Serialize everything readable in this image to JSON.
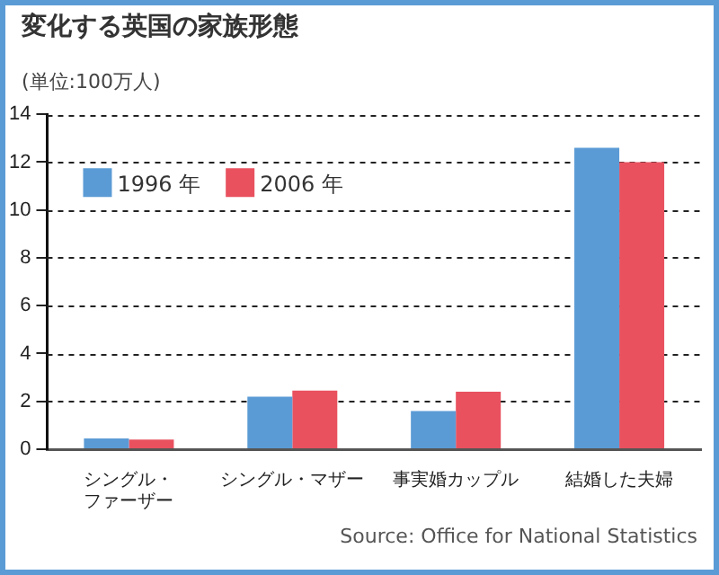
{
  "chart_data": {
    "type": "bar",
    "title": "変化する英国の家族形態",
    "ylabel": "(単位:100万人)",
    "annotations": [
      "Source: Office for National Statistics"
    ],
    "categories": [
      "シングル・ファーザー",
      "シングル・マザー",
      "事実婚カップル",
      "結婚した夫婦"
    ],
    "series": [
      {
        "name": "1996 年",
        "color": "#5b9bd5",
        "values": [
          0.45,
          2.2,
          1.6,
          12.6
        ]
      },
      {
        "name": "2006 年",
        "color": "#e9515f",
        "values": [
          0.4,
          2.45,
          2.4,
          12.0
        ]
      }
    ],
    "ylim": [
      0,
      14
    ],
    "yticks": [
      0,
      2,
      4,
      6,
      8,
      10,
      12,
      14
    ],
    "grid": "y",
    "legend": "top left"
  }
}
